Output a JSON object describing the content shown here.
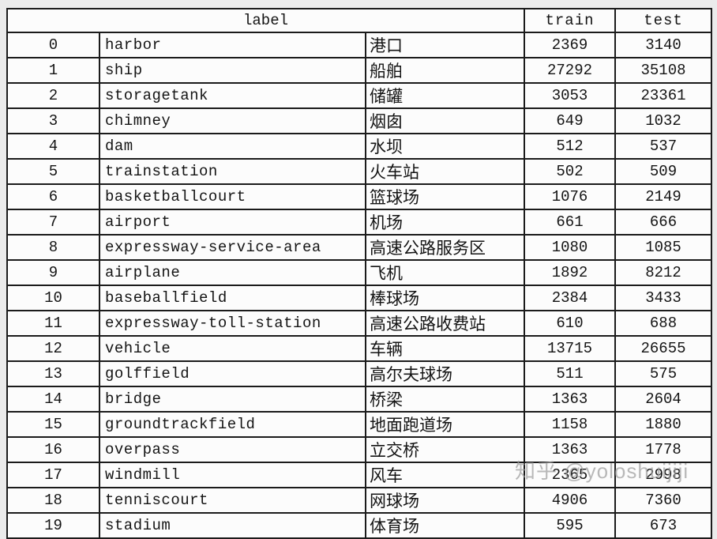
{
  "chart_data": {
    "type": "table",
    "header": {
      "label": "label",
      "train": "train",
      "test": "test"
    },
    "columns": [
      "index",
      "label",
      "label_cn",
      "train",
      "test"
    ],
    "rows": [
      {
        "index": 0,
        "label": "harbor",
        "label_cn": "港口",
        "train": 2369,
        "test": 3140
      },
      {
        "index": 1,
        "label": "ship",
        "label_cn": "船舶",
        "train": 27292,
        "test": 35108
      },
      {
        "index": 2,
        "label": "storagetank",
        "label_cn": "储罐",
        "train": 3053,
        "test": 23361
      },
      {
        "index": 3,
        "label": "chimney",
        "label_cn": "烟囱",
        "train": 649,
        "test": 1032
      },
      {
        "index": 4,
        "label": "dam",
        "label_cn": "水坝",
        "train": 512,
        "test": 537
      },
      {
        "index": 5,
        "label": "trainstation",
        "label_cn": "火车站",
        "train": 502,
        "test": 509
      },
      {
        "index": 6,
        "label": "basketballcourt",
        "label_cn": "篮球场",
        "train": 1076,
        "test": 2149
      },
      {
        "index": 7,
        "label": "airport",
        "label_cn": "机场",
        "train": 661,
        "test": 666
      },
      {
        "index": 8,
        "label": "expressway-service-area",
        "label_cn": "高速公路服务区",
        "train": 1080,
        "test": 1085
      },
      {
        "index": 9,
        "label": "airplane",
        "label_cn": "飞机",
        "train": 1892,
        "test": 8212
      },
      {
        "index": 10,
        "label": "baseballfield",
        "label_cn": "棒球场",
        "train": 2384,
        "test": 3433
      },
      {
        "index": 11,
        "label": "expressway-toll-station",
        "label_cn": "高速公路收费站",
        "train": 610,
        "test": 688
      },
      {
        "index": 12,
        "label": "vehicle",
        "label_cn": "车辆",
        "train": 13715,
        "test": 26655
      },
      {
        "index": 13,
        "label": "golffield",
        "label_cn": "高尔夫球场",
        "train": 511,
        "test": 575
      },
      {
        "index": 14,
        "label": "bridge",
        "label_cn": "桥梁",
        "train": 1363,
        "test": 2604
      },
      {
        "index": 15,
        "label": "groundtrackfield",
        "label_cn": "地面跑道场",
        "train": 1158,
        "test": 1880
      },
      {
        "index": 16,
        "label": "overpass",
        "label_cn": "立交桥",
        "train": 1363,
        "test": 1778
      },
      {
        "index": 17,
        "label": "windmill",
        "label_cn": "风车",
        "train": 2365,
        "test": 2998
      },
      {
        "index": 18,
        "label": "tenniscourt",
        "label_cn": "网球场",
        "train": 4906,
        "test": 7360
      },
      {
        "index": 19,
        "label": "stadium",
        "label_cn": "体育场",
        "train": 595,
        "test": 673
      }
    ]
  },
  "watermark": {
    "text": "知乎 @yoloshuijiji"
  },
  "colors": {
    "background": "#ebebeb",
    "table_background": "#fcfcfc",
    "border": "#1b1b1b",
    "text": "#141414",
    "watermark": "#9f9f9f"
  }
}
